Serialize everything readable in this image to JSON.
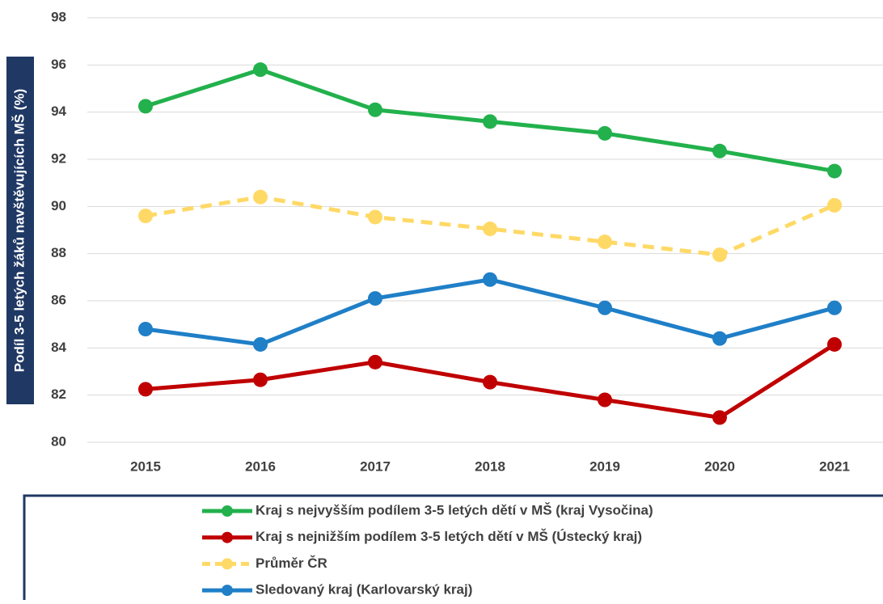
{
  "chart_data": {
    "type": "line",
    "ylabel": "Podíl 3-5 letých žáků navštěvujících MŠ (%)",
    "categories": [
      "2015",
      "2016",
      "2017",
      "2018",
      "2019",
      "2020",
      "2021"
    ],
    "series": [
      {
        "name": "Kraj s nejvyšším podílem 3-5 letých dětí v MŠ (kraj Vysočina)",
        "color": "#22b14c",
        "line_style": "solid",
        "values": [
          94.25,
          95.8,
          94.1,
          93.6,
          93.1,
          92.35,
          91.5
        ]
      },
      {
        "name": "Kraj s nejnižším podílem 3-5 letých dětí v MŠ (Ústecký kraj)",
        "color": "#c00000",
        "line_style": "solid",
        "values": [
          82.25,
          82.65,
          83.4,
          82.55,
          81.8,
          81.05,
          84.15
        ]
      },
      {
        "name": "Průměr ČR",
        "color": "#ffd966",
        "line_style": "dashed",
        "values": [
          89.6,
          90.4,
          89.55,
          89.05,
          88.5,
          87.95,
          90.05
        ]
      },
      {
        "name": "Sledovaný kraj (Karlovarský kraj)",
        "color": "#1f7fc7",
        "line_style": "solid",
        "values": [
          84.8,
          84.15,
          86.1,
          86.9,
          85.7,
          84.4,
          85.7
        ]
      }
    ],
    "ylim": [
      80,
      98
    ],
    "yticks": [
      80,
      82,
      84,
      86,
      88,
      90,
      92,
      94,
      96,
      98
    ],
    "grid": true
  }
}
